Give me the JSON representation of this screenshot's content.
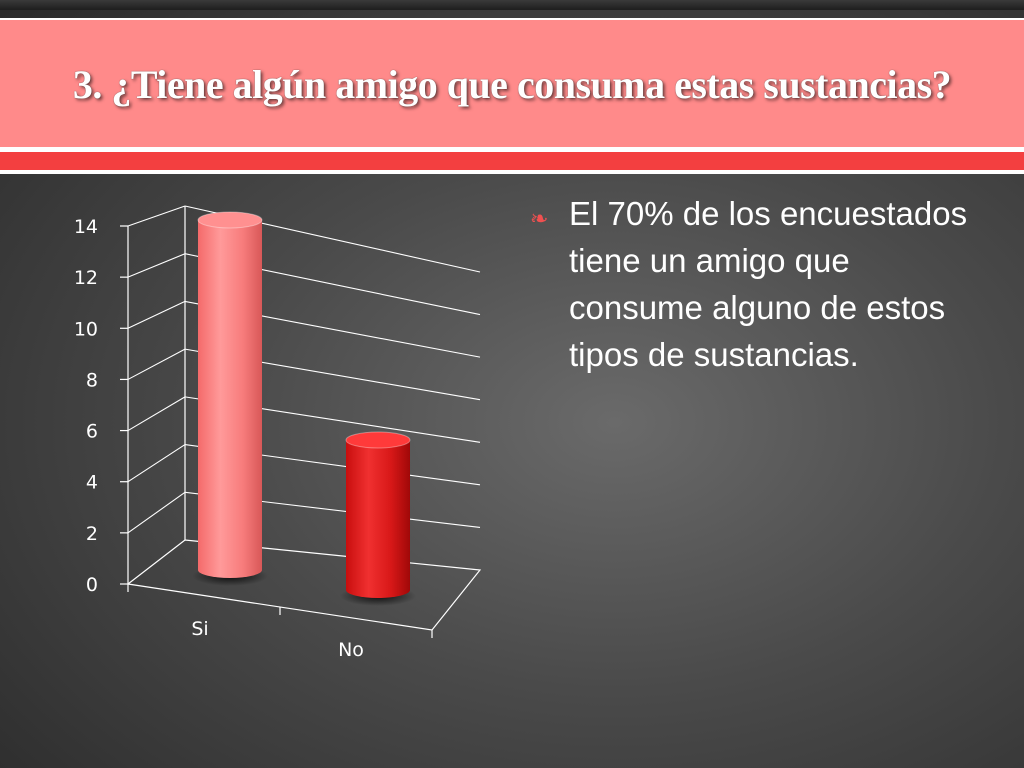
{
  "slide": {
    "title": "3. ¿Tiene algún amigo que consuma estas sustancias?",
    "bullet_icon": "fleuron-bullet-icon",
    "bullet_text": "El 70% de los encuestados tiene un amigo que consume alguno de estos tipos de sustancias.",
    "colors": {
      "title_band": "#ff8a8a",
      "stripe": "#f33f40",
      "bar_si": "#f47878",
      "bar_no": "#e01818"
    }
  },
  "chart_data": {
    "type": "bar",
    "categories": [
      "Si",
      "No"
    ],
    "values": [
      14,
      6
    ],
    "ylim": [
      0,
      14
    ],
    "yticks": [
      "0",
      "2",
      "4",
      "6",
      "8",
      "10",
      "12",
      "14"
    ],
    "grid": true,
    "title": "",
    "xlabel": "",
    "ylabel": ""
  }
}
